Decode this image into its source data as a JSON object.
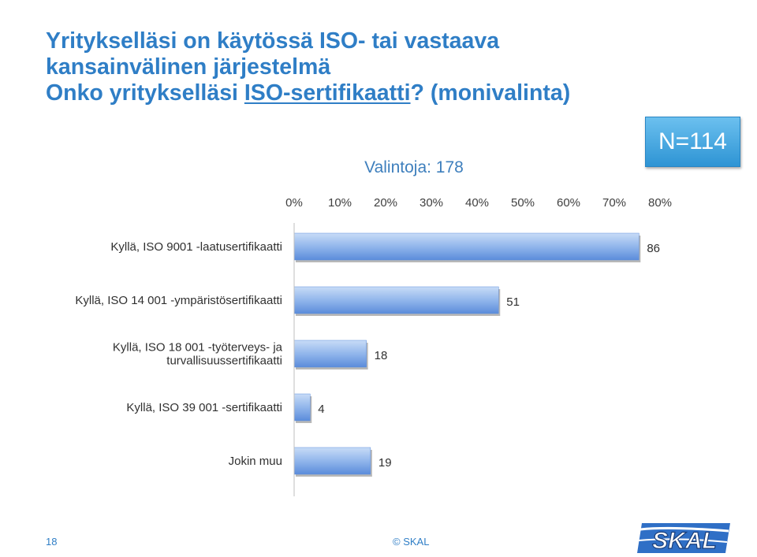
{
  "title": {
    "line1": "Yritykselläsi on käytössä ISO- tai vastaava",
    "line2": "kansainvälinen järjestelmä",
    "question_prefix": "Onko yritykselläsi ",
    "question_underlined": "ISO-sertifikaatti",
    "question_suffix": "? (monivalinta)"
  },
  "n_label": "N=114",
  "footer": {
    "page": "18",
    "copyright": "© SKAL"
  },
  "logo": {
    "text": "SKAL"
  },
  "colors": {
    "accent": "#2f7ec6",
    "bar_light": "#c4d8f5",
    "bar_dark": "#5f90dc"
  },
  "chart_data": {
    "type": "bar",
    "orientation": "horizontal",
    "title": "Valintoja: 178",
    "x_axis": {
      "position": "top",
      "range": [
        0,
        80
      ],
      "unit": "%",
      "ticks": [
        "0%",
        "10%",
        "20%",
        "30%",
        "40%",
        "50%",
        "60%",
        "70%",
        "80%"
      ]
    },
    "grid": false,
    "legend": "none",
    "categories": [
      [
        "Kyllä, ISO 9001 -laatusertifikaatti"
      ],
      [
        "Kyllä, ISO 14 001 -ympäristösertifikaatti"
      ],
      [
        "Kyllä, ISO 18 001 -työterveys- ja",
        "turvallisuussertifikaatti"
      ],
      [
        "Kyllä, ISO 39 001 -sertifikaatti"
      ],
      [
        "Jokin muu"
      ]
    ],
    "values": [
      86,
      51,
      18,
      4,
      19
    ],
    "percent": [
      75.4,
      44.7,
      15.8,
      3.5,
      16.7
    ],
    "data_labels": [
      "86",
      "51",
      "18",
      "4",
      "19"
    ]
  }
}
